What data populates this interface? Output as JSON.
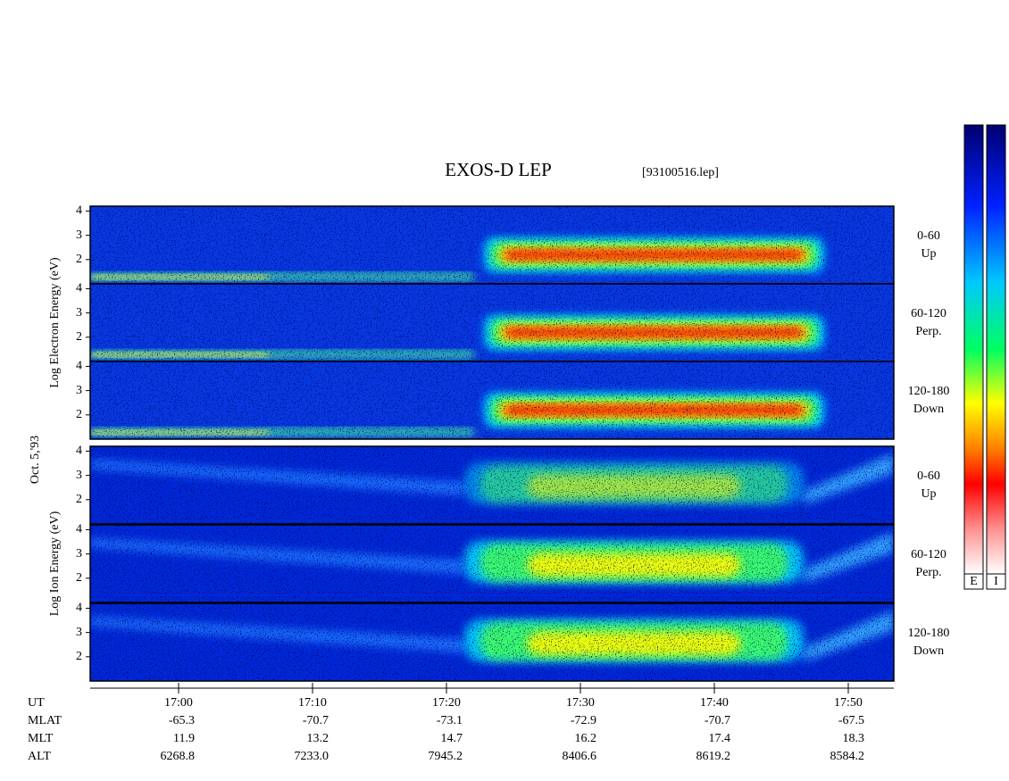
{
  "chart_data": {
    "type": "spectrogram",
    "title": "EXOS-D LEP",
    "file": "[93100516.lep]",
    "date_label": "Oct. 5,'93",
    "groups": [
      {
        "ylabel": "Log  Electron  Energy (eV)",
        "colorbar": "E",
        "panels": [
          {
            "label": [
              "0-60",
              "Up"
            ]
          },
          {
            "label": [
              "60-120",
              "Perp."
            ]
          },
          {
            "label": [
              "120-180",
              "Down"
            ]
          }
        ]
      },
      {
        "ylabel": "Log  Ion  Energy (eV)",
        "colorbar": "I",
        "panels": [
          {
            "label": [
              "0-60",
              "Up"
            ]
          },
          {
            "label": [
              "60-120",
              "Perp."
            ]
          },
          {
            "label": [
              "120-180",
              "Down"
            ]
          }
        ]
      }
    ],
    "ylim": [
      1,
      4.2
    ],
    "yticks": [
      2,
      3,
      4
    ],
    "xlim": [
      1013.4,
      1073.4
    ],
    "xticks": [
      {
        "value": 1020,
        "label": "17:00"
      },
      {
        "value": 1030,
        "label": "17:10"
      },
      {
        "value": 1040,
        "label": "17:20"
      },
      {
        "value": 1050,
        "label": "17:30"
      },
      {
        "value": 1060,
        "label": "17:40"
      },
      {
        "value": 1070,
        "label": "17:50"
      }
    ],
    "rows": [
      {
        "name": "UT"
      },
      {
        "name": "MLAT",
        "values": [
          "-65.3",
          "-70.7",
          "-73.1",
          "-72.9",
          "-70.7",
          "-67.5"
        ]
      },
      {
        "name": "MLT",
        "values": [
          "11.9",
          "13.2",
          "14.7",
          "16.2",
          "17.4",
          "18.3"
        ]
      },
      {
        "name": "ALT",
        "values": [
          "6268.8",
          "7233.0",
          "7945.2",
          "8406.6",
          "8619.2",
          "8584.2"
        ]
      }
    ]
  }
}
